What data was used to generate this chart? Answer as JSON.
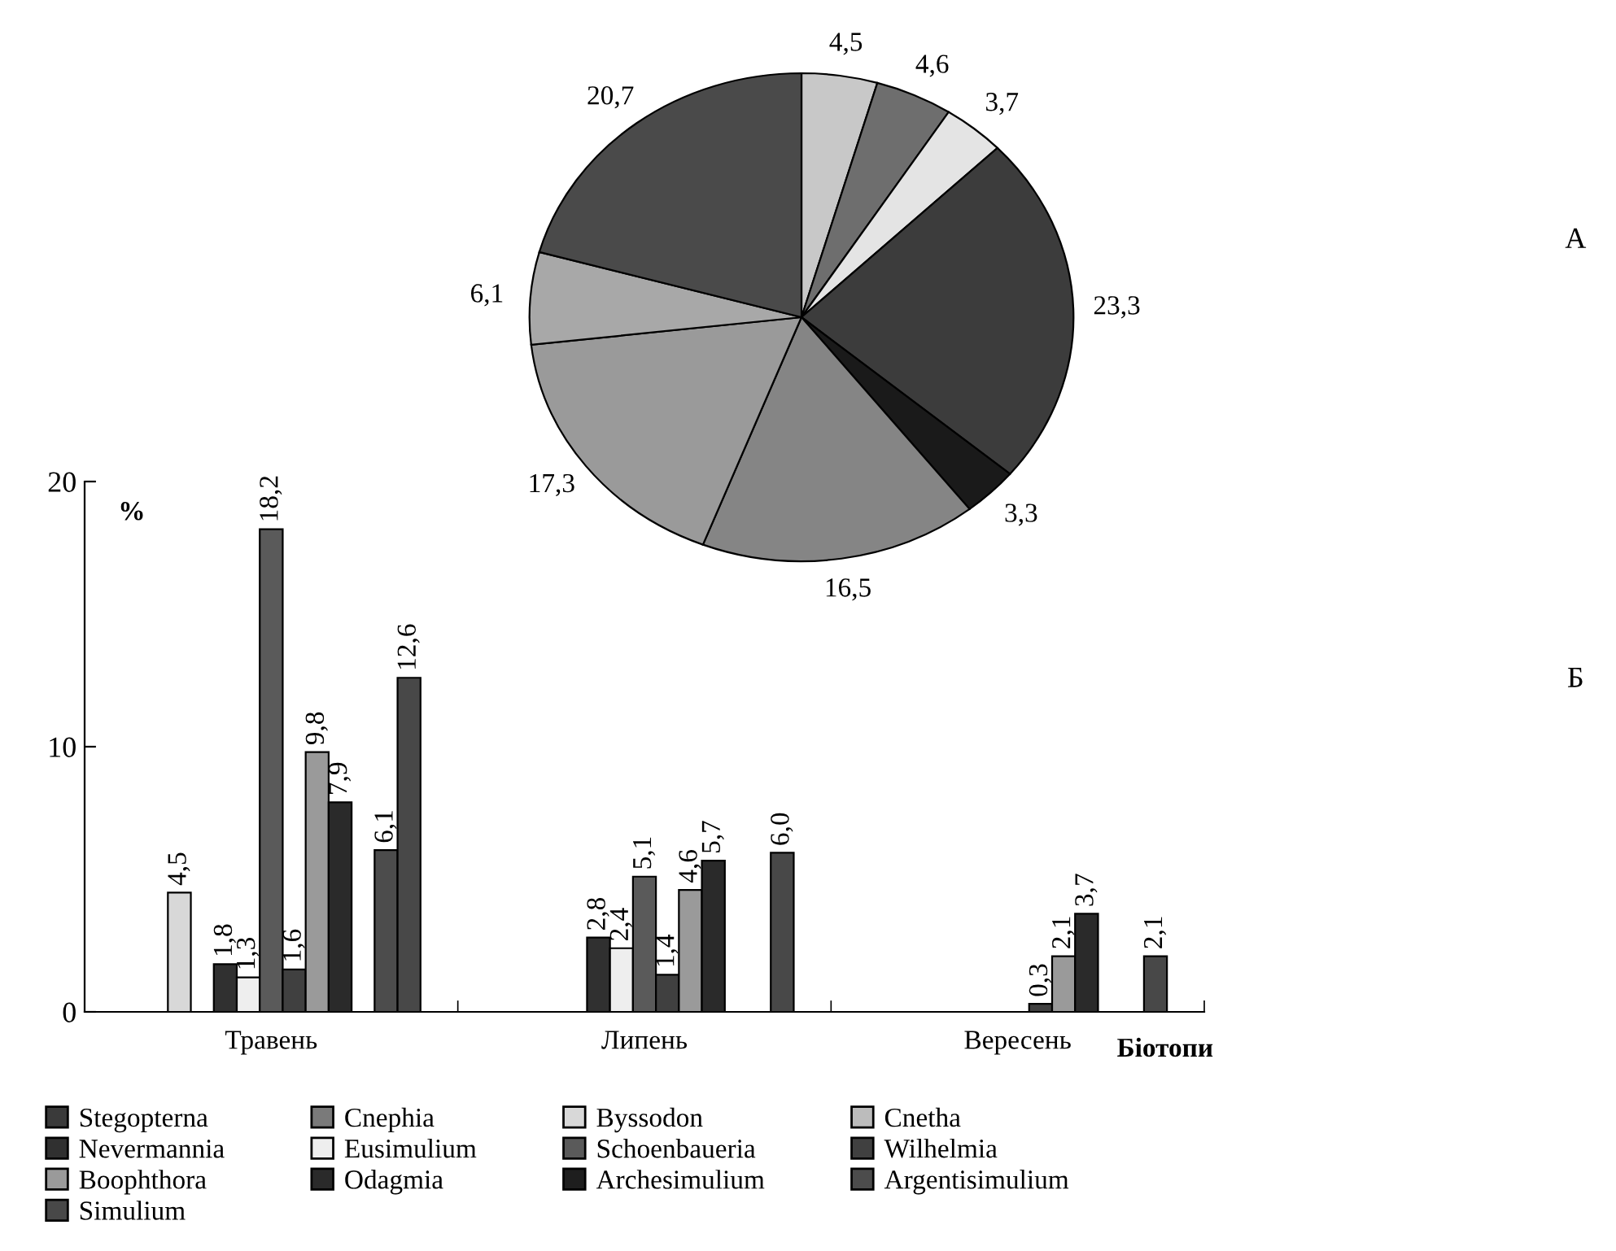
{
  "chart_data": [
    {
      "type": "pie",
      "categories": [
        null,
        null,
        null,
        null,
        null,
        null,
        null,
        null,
        null
      ],
      "values": [
        4.5,
        4.6,
        3.7,
        23.3,
        3.3,
        16.5,
        17.3,
        6.1,
        20.7
      ],
      "value_labels": [
        "4,5",
        "4,6",
        "3,7",
        "23,3",
        "3,3",
        "16,5",
        "17,3",
        "6,1",
        "20,7"
      ],
      "colors": [
        "#c8c8c8",
        "#6e6e6e",
        "#e4e4e4",
        "#3c3c3c",
        "#1a1a1a",
        "#858585",
        "#9a9a9a",
        "#a8a8a8",
        "#4a4a4a"
      ],
      "annotations": [
        "А"
      ]
    },
    {
      "type": "bar",
      "categories": [
        "Травень",
        "Липень",
        "Вересень"
      ],
      "xlabel": "Біотопи",
      "ylabel": "%",
      "ylim": [
        0,
        20
      ],
      "yticks": [
        0,
        10,
        20
      ],
      "grid": false,
      "legend": "bottom",
      "annotations": [
        "Б"
      ],
      "series": [
        {
          "name": "Stegopterna",
          "color": "#3a3a3a",
          "values": [
            null,
            null,
            null
          ],
          "value_labels": [
            null,
            null,
            null
          ]
        },
        {
          "name": "Cnephia",
          "color": "#7a7a7a",
          "values": [
            null,
            null,
            null
          ],
          "value_labels": [
            null,
            null,
            null
          ]
        },
        {
          "name": "Byssodon",
          "color": "#d8d8d8",
          "values": [
            4.5,
            null,
            null
          ],
          "value_labels": [
            "4,5",
            null,
            null
          ]
        },
        {
          "name": "Cnetha",
          "color": "#bcbcbc",
          "values": [
            null,
            null,
            null
          ],
          "value_labels": [
            null,
            null,
            null
          ]
        },
        {
          "name": "Nevermannia",
          "color": "#303030",
          "values": [
            1.8,
            2.8,
            null
          ],
          "value_labels": [
            "1,8",
            "2,8",
            null
          ]
        },
        {
          "name": "Eusimulium",
          "color": "#eeeeee",
          "values": [
            1.3,
            2.4,
            null
          ],
          "value_labels": [
            "1,3",
            "2,4",
            null
          ]
        },
        {
          "name": "Schoenbaueria",
          "color": "#5a5a5a",
          "values": [
            18.2,
            5.1,
            null
          ],
          "value_labels": [
            "18,2",
            "5,1",
            null
          ]
        },
        {
          "name": "Wilhelmia",
          "color": "#404040",
          "values": [
            1.6,
            1.4,
            0.3
          ],
          "value_labels": [
            "1,6",
            "1,4",
            "0,3"
          ]
        },
        {
          "name": "Boophthora",
          "color": "#9a9a9a",
          "values": [
            9.8,
            4.6,
            2.1
          ],
          "value_labels": [
            "9,8",
            "4,6",
            "2,1"
          ]
        },
        {
          "name": "Odagmia",
          "color": "#2a2a2a",
          "values": [
            7.9,
            5.7,
            3.7
          ],
          "value_labels": [
            "7,9",
            "5,7",
            "3,7"
          ]
        },
        {
          "name": "Archesimulium",
          "color": "#1e1e1e",
          "values": [
            null,
            null,
            null
          ],
          "value_labels": [
            null,
            null,
            null
          ]
        },
        {
          "name": "Argentisimulium",
          "color": "#4c4c4c",
          "values": [
            6.1,
            null,
            null
          ],
          "value_labels": [
            "6,1",
            null,
            null
          ]
        },
        {
          "name": "Simulium",
          "color": "#484848",
          "values": [
            12.6,
            6.0,
            2.1
          ],
          "value_labels": [
            "12,6",
            "6,0",
            "2,1"
          ]
        }
      ]
    }
  ]
}
